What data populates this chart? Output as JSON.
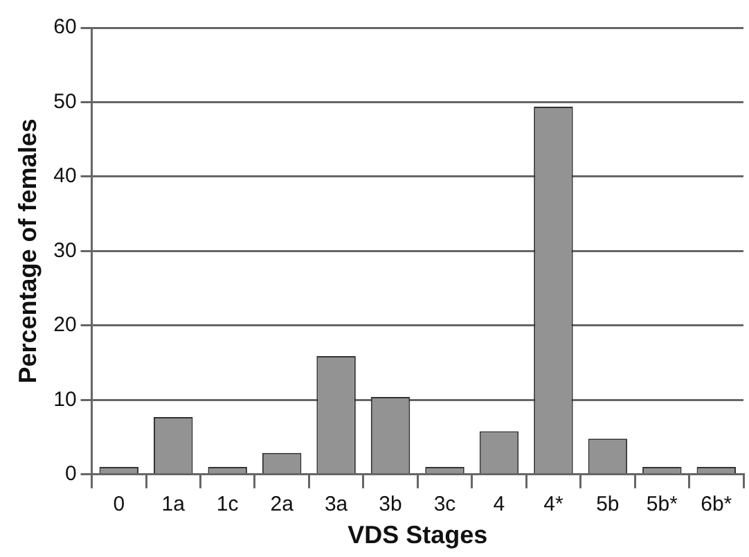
{
  "chart_data": {
    "type": "bar",
    "xlabel": "VDS Stages",
    "ylabel": "Percentage of females",
    "categories": [
      "0",
      "1a",
      "1c",
      "2a",
      "3a",
      "3b",
      "3c",
      "4",
      "4*",
      "5b",
      "5b*",
      "6b*"
    ],
    "values": [
      1,
      7.7,
      1,
      2.9,
      15.9,
      10.4,
      1,
      5.8,
      49.4,
      4.8,
      1,
      1
    ],
    "color": "#939393",
    "ylim": [
      0,
      60
    ],
    "yticks": [
      0,
      10,
      20,
      30,
      40,
      50,
      60
    ],
    "grid": "y",
    "legend": false
  }
}
